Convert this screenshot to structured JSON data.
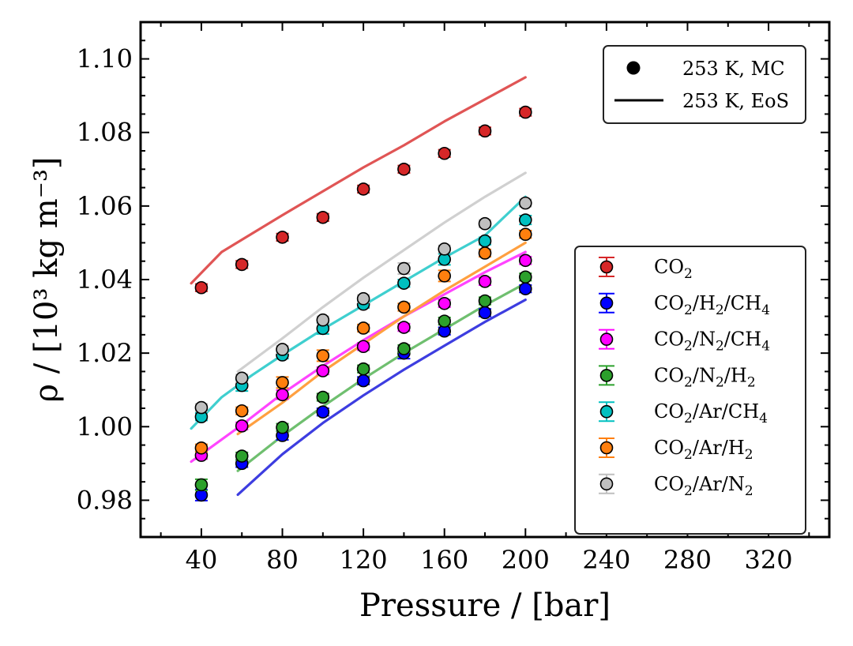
{
  "chart_data": {
    "type": "scatter",
    "xlabel": "Pressure / [bar]",
    "ylabel": "ρ / [10³ kg m⁻³]",
    "xlim": [
      10,
      350
    ],
    "ylim": [
      0.97,
      1.11
    ],
    "x_ticks": [
      40,
      80,
      120,
      160,
      200,
      240,
      280,
      320
    ],
    "y_ticks": [
      0.98,
      1.0,
      1.02,
      1.04,
      1.06,
      1.08,
      1.1
    ],
    "y_tick_labels": [
      "0.98",
      "1.00",
      "1.02",
      "1.04",
      "1.06",
      "1.08",
      "1.10"
    ],
    "legend_style": {
      "position": "top-right",
      "entries": [
        {
          "label": "253 K, MC",
          "marker": "circle"
        },
        {
          "label": "253 K, EoS",
          "marker": "line"
        }
      ]
    },
    "legend_series_position": "center-right",
    "x": [
      40,
      60,
      80,
      100,
      120,
      140,
      160,
      180,
      200
    ],
    "series": [
      {
        "name": "CO2",
        "base": "CO",
        "subs": [
          "2"
        ],
        "parts": [],
        "color": "#d62728",
        "line_color": "#e05555",
        "mc": [
          1.0378,
          1.0441,
          1.0515,
          1.0569,
          1.0646,
          1.07,
          1.0743,
          1.0804,
          1.0855
        ],
        "err": [
          0.001,
          0.001,
          0.001,
          0.001,
          0.001,
          0.001,
          0.001,
          0.001,
          0.001
        ],
        "eos_p": [
          35,
          50,
          65,
          80,
          100,
          120,
          140,
          160,
          180,
          200
        ],
        "eos": [
          1.039,
          1.0475,
          1.0525,
          1.0575,
          1.064,
          1.0705,
          1.0765,
          1.083,
          1.089,
          1.095
        ]
      },
      {
        "name": "CO2/H2/CH4",
        "base": "CO",
        "subs": [
          "2",
          "2",
          "4"
        ],
        "parts": [
          "/H",
          "/CH"
        ],
        "color": "#0000ff",
        "line_color": "#3d3de0",
        "mc": [
          0.9814,
          0.99,
          0.9976,
          1.004,
          1.0125,
          1.02,
          1.026,
          1.031,
          1.0375
        ],
        "err": [
          0.0015,
          0.001,
          0.0012,
          0.001,
          0.001,
          0.0015,
          0.001,
          0.001,
          0.001
        ],
        "eos_p": [
          58,
          80,
          100,
          120,
          140,
          160,
          180,
          200
        ],
        "eos": [
          0.9815,
          0.9925,
          1.001,
          1.0085,
          1.0155,
          1.022,
          1.0285,
          1.0345
        ]
      },
      {
        "name": "CO2/N2/CH4",
        "base": "CO",
        "subs": [
          "2",
          "2",
          "4"
        ],
        "parts": [
          "/N",
          "/CH"
        ],
        "color": "#ff00ff",
        "line_color": "#ff44ff",
        "mc": [
          0.9922,
          1.0002,
          1.0087,
          1.0152,
          1.0218,
          1.027,
          1.0335,
          1.0395,
          1.0452
        ],
        "err": [
          0.001,
          0.001,
          0.0012,
          0.001,
          0.001,
          0.001,
          0.001,
          0.001,
          0.001
        ],
        "eos_p": [
          35,
          60,
          80,
          100,
          120,
          140,
          160,
          180,
          200
        ],
        "eos": [
          0.9905,
          1.0005,
          1.009,
          1.0165,
          1.0235,
          1.03,
          1.036,
          1.042,
          1.0475
        ]
      },
      {
        "name": "CO2/N2/H2",
        "base": "CO",
        "subs": [
          "2",
          "2",
          "2"
        ],
        "parts": [
          "/N",
          "/H"
        ],
        "color": "#2ca02c",
        "line_color": "#6fbf6f",
        "mc": [
          0.9842,
          0.992,
          0.9998,
          1.008,
          1.0157,
          1.0212,
          1.0287,
          1.0342,
          1.0407
        ],
        "err": [
          0.0015,
          0.001,
          0.001,
          0.001,
          0.001,
          0.001,
          0.001,
          0.001,
          0.001
        ],
        "eos_p": [
          58,
          80,
          100,
          120,
          140,
          160,
          180,
          200
        ],
        "eos": [
          0.988,
          0.9975,
          1.0055,
          1.013,
          1.02,
          1.0265,
          1.033,
          1.039
        ]
      },
      {
        "name": "CO2/Ar/CH4",
        "base": "CO",
        "subs": [
          "2",
          "4"
        ],
        "parts": [
          "/Ar/CH"
        ],
        "color": "#00c0c0",
        "line_color": "#3fcfcf",
        "mc": [
          1.0027,
          1.0112,
          1.0195,
          1.0267,
          1.0333,
          1.039,
          1.0455,
          1.0505,
          1.0562
        ],
        "err": [
          0.001,
          0.0015,
          0.001,
          0.0015,
          0.001,
          0.001,
          0.0015,
          0.001,
          0.0012
        ],
        "eos_p": [
          35,
          50,
          65,
          80,
          100,
          120,
          140,
          160,
          180,
          200
        ],
        "eos": [
          0.9995,
          1.008,
          1.014,
          1.0195,
          1.0265,
          1.033,
          1.0395,
          1.046,
          1.052,
          1.0625
        ]
      },
      {
        "name": "CO2/Ar/H2",
        "base": "CO",
        "subs": [
          "2",
          "2"
        ],
        "parts": [
          "/Ar/H"
        ],
        "color": "#ff7f0e",
        "line_color": "#ffa040",
        "mc": [
          0.9942,
          1.0043,
          1.012,
          1.0193,
          1.0268,
          1.0325,
          1.041,
          1.0472,
          1.0523
        ],
        "err": [
          0.001,
          0.001,
          0.0015,
          0.0015,
          0.001,
          0.001,
          0.0015,
          0.001,
          0.001
        ],
        "eos_p": [
          58,
          80,
          100,
          120,
          140,
          160,
          180,
          200
        ],
        "eos": [
          0.998,
          1.0065,
          1.015,
          1.0225,
          1.03,
          1.037,
          1.0435,
          1.05
        ]
      },
      {
        "name": "CO2/Ar/N2",
        "base": "CO",
        "subs": [
          "2",
          "2"
        ],
        "parts": [
          "/Ar/N"
        ],
        "color": "#bfbfbf",
        "line_color": "#d0d0d0",
        "mc": [
          1.0052,
          1.0132,
          1.021,
          1.029,
          1.0348,
          1.043,
          1.0483,
          1.0552,
          1.0608
        ],
        "err": [
          0.001,
          0.001,
          0.001,
          0.001,
          0.001,
          0.0015,
          0.001,
          0.001,
          0.001
        ],
        "eos_p": [
          58,
          80,
          100,
          120,
          140,
          160,
          180,
          200
        ],
        "eos": [
          1.015,
          1.024,
          1.0325,
          1.0405,
          1.048,
          1.0555,
          1.0625,
          1.069
        ]
      }
    ]
  }
}
